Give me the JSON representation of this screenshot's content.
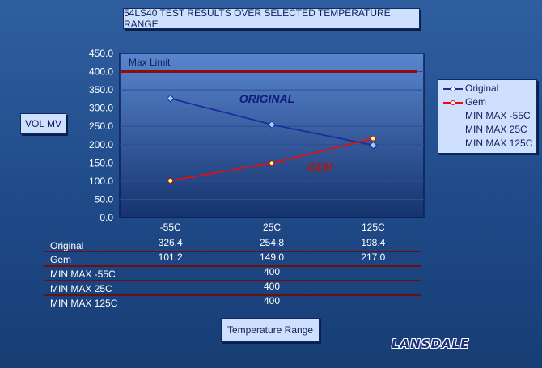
{
  "chart_data": {
    "type": "line",
    "title": "54LS40 TEST RESULTS OVER SELECTED TEMPERATURE RANGE",
    "xlabel": "Temperature Range",
    "ylabel": "VOL MV",
    "categories": [
      "-55C",
      "25C",
      "125C"
    ],
    "ylim": [
      0,
      450
    ],
    "yticks": [
      "0.0",
      "50.0",
      "100.0",
      "150.0",
      "200.0",
      "250.0",
      "300.0",
      "350.0",
      "400.0",
      "450.0"
    ],
    "grid": true,
    "legend_position": "right",
    "series": [
      {
        "name": "Original",
        "values": [
          326.4,
          254.8,
          198.4
        ],
        "color": "#1a2f9a",
        "labels": [
          "326.4",
          "254.8",
          "198.4"
        ]
      },
      {
        "name": "Gem",
        "values": [
          101.2,
          149.0,
          217.0
        ],
        "color": "#e01010",
        "labels": [
          "101.2",
          "149.0",
          "217.0"
        ]
      }
    ],
    "max_limit": {
      "label": "Max Limit",
      "value": 400,
      "color": "#8a1010"
    },
    "annotations": [
      {
        "text": "ORIGINAL",
        "color": "#101a80"
      },
      {
        "text": "GEM",
        "color": "#b01808"
      }
    ],
    "extra_legend": [
      "MIN MAX -55C",
      "MIN MAX 25C",
      "MIN MAX 125C"
    ],
    "table_rows": [
      {
        "label": "Original",
        "values": [
          "326.4",
          "254.8",
          "198.4"
        ]
      },
      {
        "label": "Gem",
        "values": [
          "101.2",
          "149.0",
          "217.0"
        ]
      },
      {
        "label": "MIN MAX -55C",
        "values": [
          "",
          "400",
          ""
        ]
      },
      {
        "label": "MIN MAX 25C",
        "values": [
          "",
          "400",
          ""
        ]
      },
      {
        "label": "MIN MAX 125C",
        "values": [
          "",
          "400",
          ""
        ]
      }
    ]
  },
  "logo": {
    "text": "LANSDALE"
  }
}
